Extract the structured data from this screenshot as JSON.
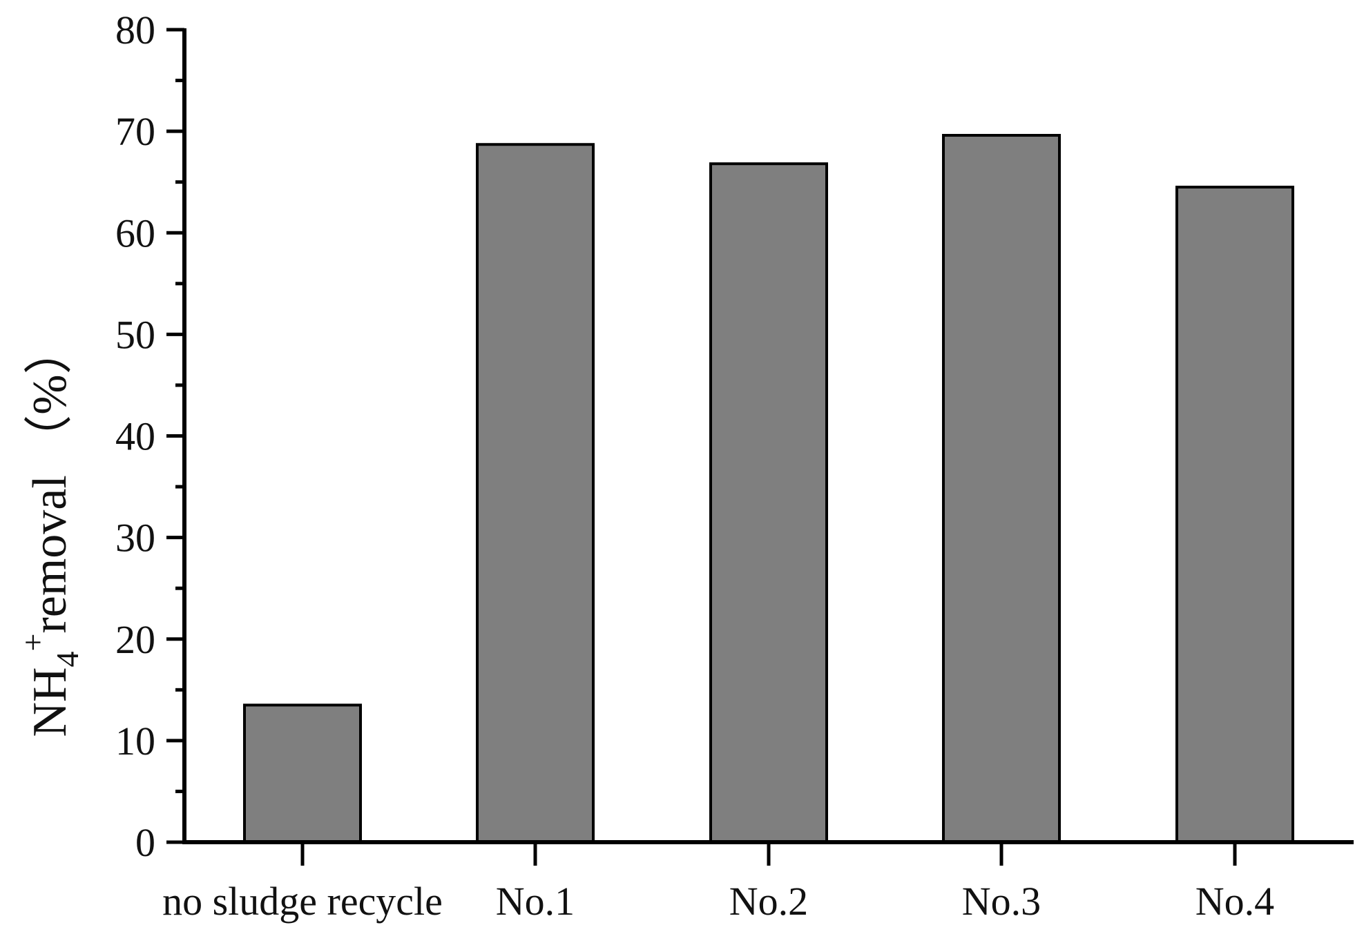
{
  "chart_data": {
    "type": "bar",
    "categories": [
      "no sludge recycle",
      "No.1",
      "No.2",
      "No.3",
      "No.4"
    ],
    "values": [
      13.5,
      68.7,
      66.8,
      69.6,
      64.5
    ],
    "ylabel": {
      "main": "NH",
      "subscript": "4",
      "superscript": "+",
      "rest": "removal （%）"
    },
    "xlabel": "",
    "title": "",
    "ylim": [
      0,
      80
    ],
    "yticks": [
      0,
      10,
      20,
      30,
      40,
      50,
      60,
      70,
      80
    ],
    "y_minor_step": 5,
    "grid": false,
    "legend": "none",
    "colors": {
      "bar_fill": "#7f7f7f",
      "bar_stroke": "#000000",
      "axis": "#000000"
    }
  }
}
